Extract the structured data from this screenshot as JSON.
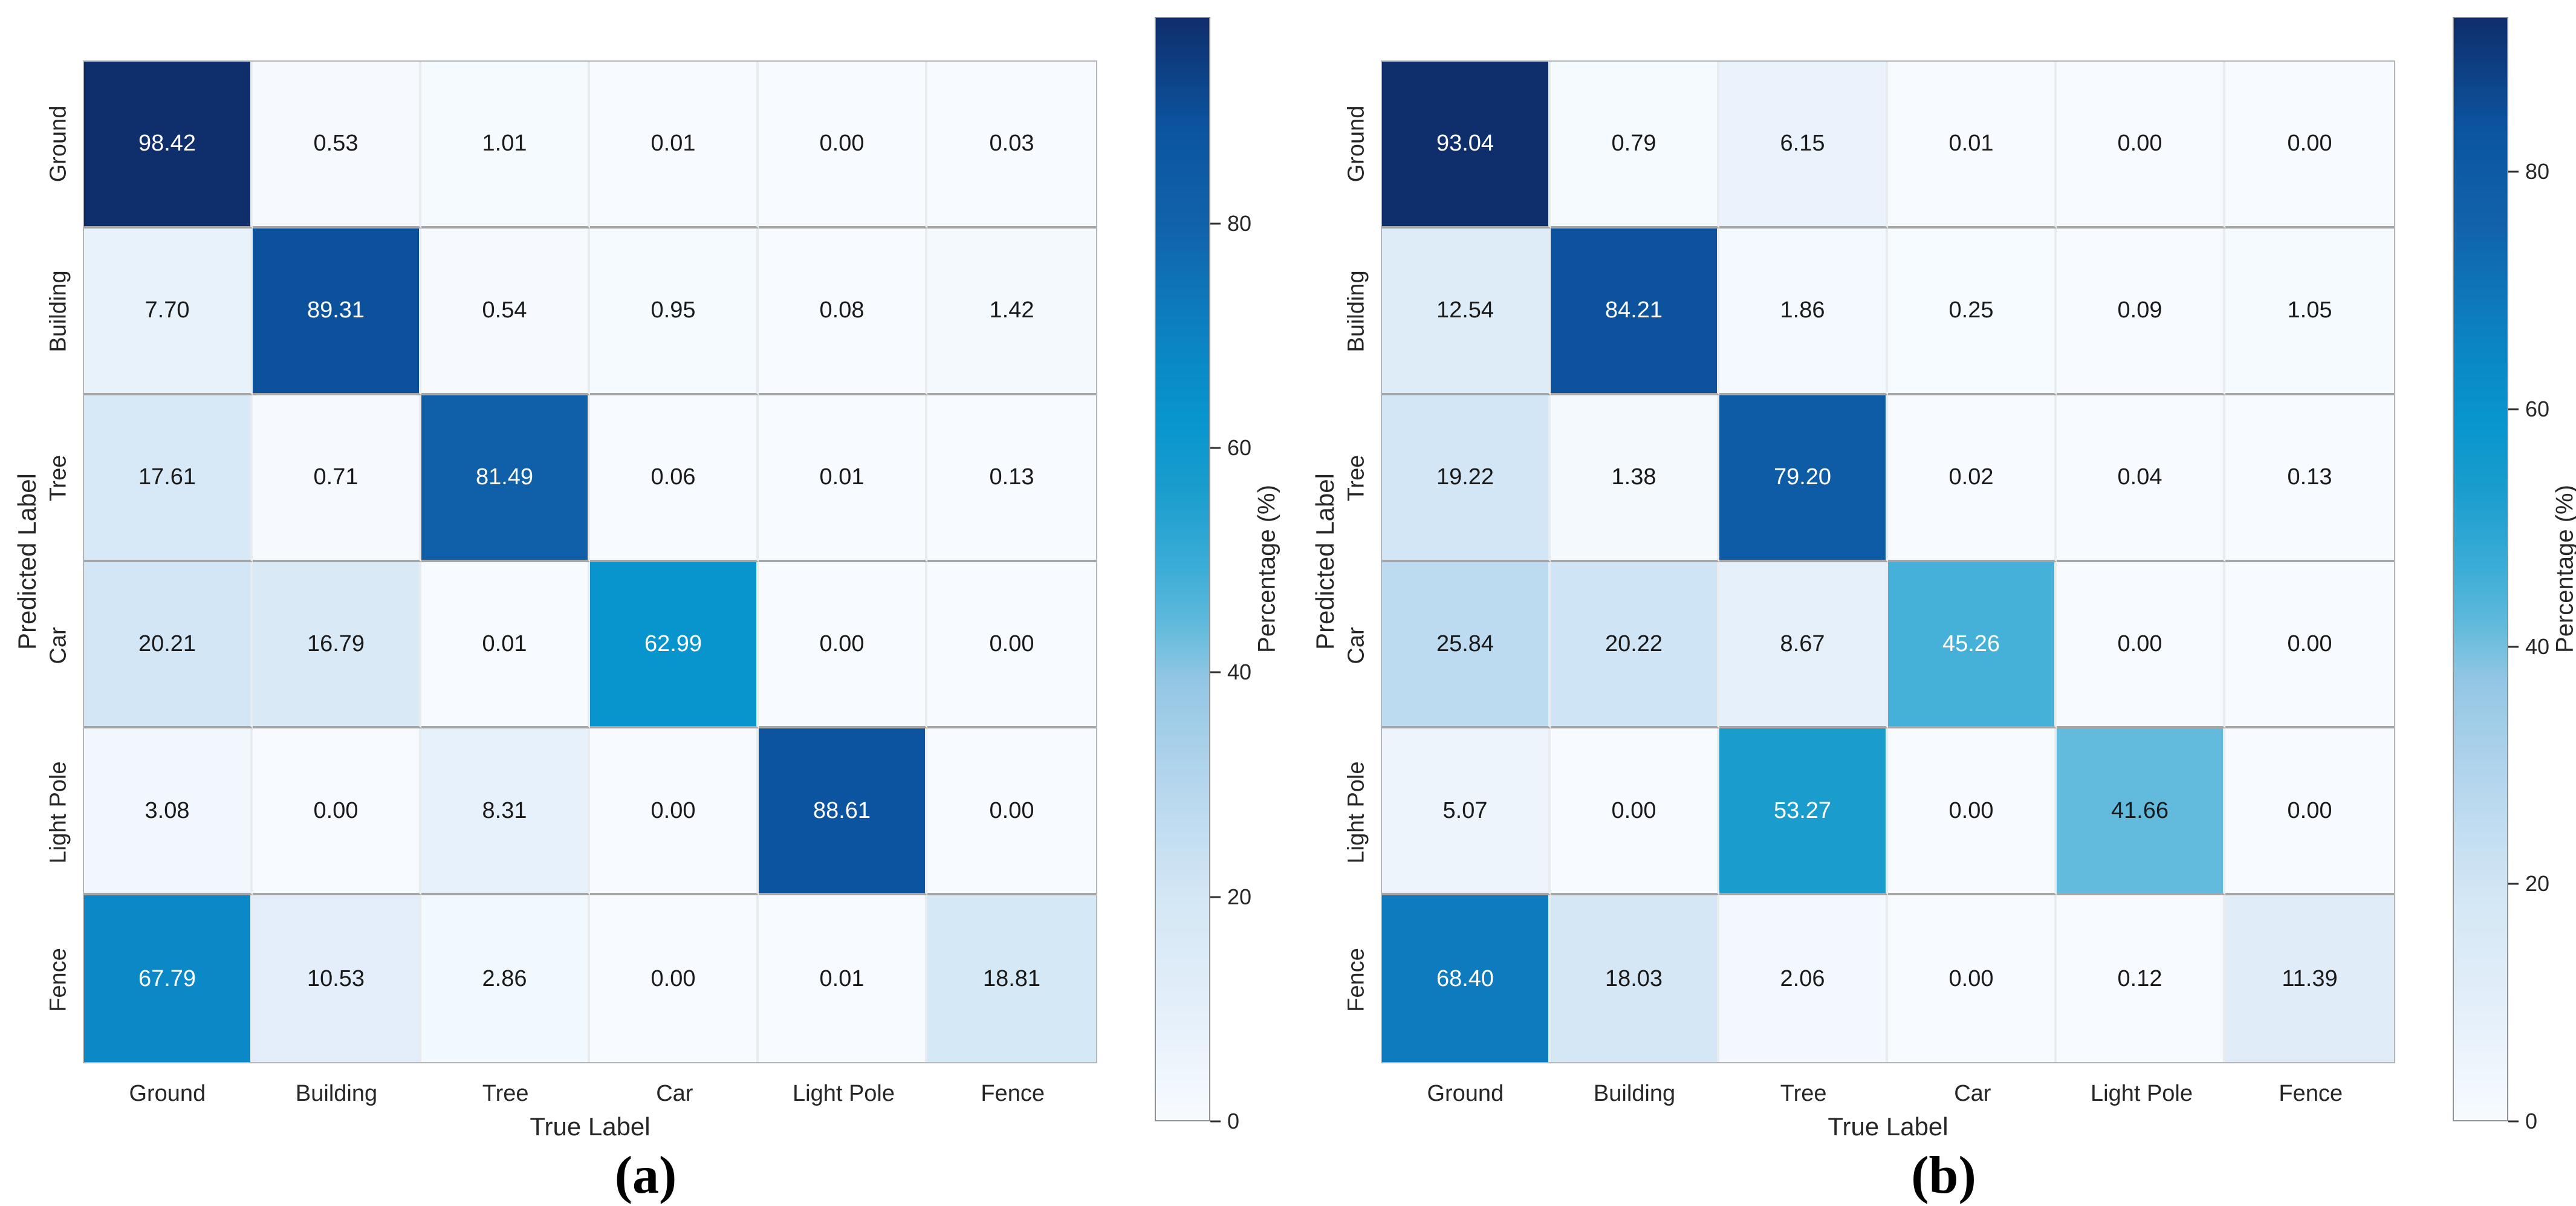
{
  "style": {
    "background": "#ffffff",
    "axis_text_color": "#262626",
    "cell_text_dark": "#1a1a1a",
    "cell_text_light": "#ffffff",
    "light_text_threshold": 0.46,
    "colormap_stops": [
      {
        "t": 0.0,
        "color": "#f7fbff"
      },
      {
        "t": 0.1,
        "color": "#e4effa"
      },
      {
        "t": 0.2,
        "color": "#d4e7f5"
      },
      {
        "t": 0.3,
        "color": "#b7d7ee"
      },
      {
        "t": 0.4,
        "color": "#92c6e3"
      },
      {
        "t": 0.45,
        "color": "#60badc"
      },
      {
        "t": 0.5,
        "color": "#3cadd7"
      },
      {
        "t": 0.57,
        "color": "#1b9dcd"
      },
      {
        "t": 0.63,
        "color": "#0896ce"
      },
      {
        "t": 0.7,
        "color": "#0b86c5"
      },
      {
        "t": 0.81,
        "color": "#1163ab"
      },
      {
        "t": 0.9,
        "color": "#0c54a0"
      },
      {
        "t": 1.0,
        "color": "#0f2e6c"
      }
    ]
  },
  "chart_data": [
    {
      "type": "heatmap",
      "name": "confusion-matrix-a",
      "caption": "(a)",
      "xlabel": "True Label",
      "ylabel": "Predicted Label",
      "x_categories": [
        "Ground",
        "Building",
        "Tree",
        "Car",
        "Light Pole",
        "Fence"
      ],
      "y_categories": [
        "Ground",
        "Building",
        "Tree",
        "Car",
        "Light Pole",
        "Fence"
      ],
      "values": [
        [
          98.42,
          0.53,
          1.01,
          0.01,
          0.0,
          0.03
        ],
        [
          7.7,
          89.31,
          0.54,
          0.95,
          0.08,
          1.42
        ],
        [
          17.61,
          0.71,
          81.49,
          0.06,
          0.01,
          0.13
        ],
        [
          20.21,
          16.79,
          0.01,
          62.99,
          0.0,
          0.0
        ],
        [
          3.08,
          0.0,
          8.31,
          0.0,
          88.61,
          0.0
        ],
        [
          67.79,
          10.53,
          2.86,
          0.0,
          0.01,
          18.81
        ]
      ],
      "value_decimals": 2,
      "value_unit": "%",
      "colorbar": {
        "label": "Percentage (%)",
        "ticks": [
          0,
          20,
          40,
          60,
          80
        ],
        "vmin": 0,
        "vmax": 98.42,
        "position": "right"
      },
      "legend": "none",
      "grid": "cell separator lines on"
    },
    {
      "type": "heatmap",
      "name": "confusion-matrix-b",
      "caption": "(b)",
      "xlabel": "True Label",
      "ylabel": "Predicted Label",
      "x_categories": [
        "Ground",
        "Building",
        "Tree",
        "Car",
        "Light Pole",
        "Fence"
      ],
      "y_categories": [
        "Ground",
        "Building",
        "Tree",
        "Car",
        "Light Pole",
        "Fence"
      ],
      "values": [
        [
          93.04,
          0.79,
          6.15,
          0.01,
          0.0,
          0.0
        ],
        [
          12.54,
          84.21,
          1.86,
          0.25,
          0.09,
          1.05
        ],
        [
          19.22,
          1.38,
          79.2,
          0.02,
          0.04,
          0.13
        ],
        [
          25.84,
          20.22,
          8.67,
          45.26,
          0.0,
          0.0
        ],
        [
          5.07,
          0.0,
          53.27,
          0.0,
          41.66,
          0.0
        ],
        [
          68.4,
          18.03,
          2.06,
          0.0,
          0.12,
          11.39
        ]
      ],
      "value_decimals": 2,
      "value_unit": "%",
      "colorbar": {
        "label": "Percentage (%)",
        "ticks": [
          0,
          20,
          40,
          60,
          80
        ],
        "vmin": 0,
        "vmax": 93.04,
        "position": "right"
      },
      "legend": "none",
      "grid": "cell separator lines on"
    }
  ]
}
